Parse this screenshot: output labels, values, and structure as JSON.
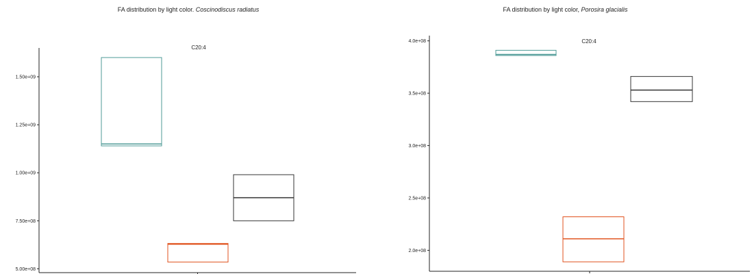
{
  "chart_data": [
    {
      "type": "box",
      "title": "FA distribution by light color.",
      "title_species": "Coscinodiscus radiatus",
      "facet_label": "C20:4",
      "ylim": [
        480000000,
        1650000000
      ],
      "y_ticks": [
        500000000,
        750000000,
        1000000000,
        1250000000,
        1500000000
      ],
      "y_tick_labels": [
        "5.00e+08",
        "7.50e+08",
        "1.00e+09",
        "1.25e+09",
        "1.50e+09"
      ],
      "x_ticks": 1,
      "boxes": [
        {
          "color": "#4e9a96",
          "q1": 1140000000,
          "median": 1150000000,
          "q3": 1600000000
        },
        {
          "color": "#e0521d",
          "q1": 535000000,
          "median": 628000000,
          "q3": 632000000
        },
        {
          "color": "#333333",
          "q1": 750000000,
          "median": 870000000,
          "q3": 990000000
        }
      ]
    },
    {
      "type": "box",
      "title": "FA distribution by light color,",
      "title_species": "Porosira glacialis",
      "facet_label": "C20:4",
      "ylim": [
        180000000,
        405000000
      ],
      "y_ticks": [
        200000000,
        250000000,
        300000000,
        350000000,
        400000000
      ],
      "y_tick_labels": [
        "2.0e+08",
        "2.5e+08",
        "3.0e+08",
        "3.5e+08",
        "4.0e+08"
      ],
      "x_ticks": 1,
      "boxes": [
        {
          "color": "#4e9a96",
          "q1": 386000000,
          "median": 387000000,
          "q3": 391000000
        },
        {
          "color": "#e0521d",
          "q1": 189000000,
          "median": 211000000,
          "q3": 232000000
        },
        {
          "color": "#333333",
          "q1": 342000000,
          "median": 353000000,
          "q3": 366000000
        }
      ]
    }
  ]
}
